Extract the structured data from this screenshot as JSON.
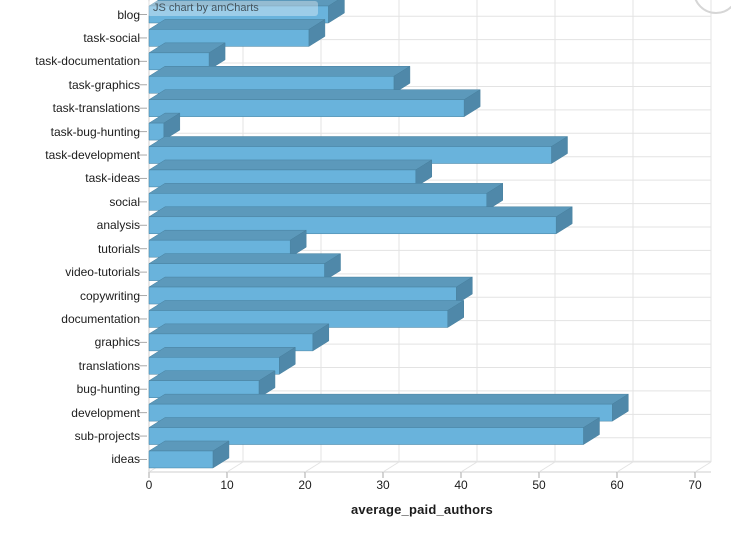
{
  "watermark": "JS chart by amCharts",
  "colors": {
    "bar_front": "#69B3DC",
    "bar_top": "#5C99BB",
    "bar_side": "#4F88A9",
    "bar_stroke": "#47809F",
    "grid": "#E3E3E3",
    "axis": "#CFCFCF",
    "tick": "#A9A9A9"
  },
  "chart_data": {
    "type": "bar",
    "orientation": "horizontal",
    "style": "3d",
    "title": "",
    "xlabel": "average_paid_authors",
    "ylabel": "",
    "xlim": [
      0,
      70
    ],
    "xticks": [
      0,
      10,
      20,
      30,
      40,
      50,
      60,
      70
    ],
    "grid": true,
    "legend": false,
    "categories": [
      "blog",
      "task-social",
      "task-documentation",
      "task-graphics",
      "task-translations",
      "task-bug-hunting",
      "task-development",
      "task-ideas",
      "social",
      "analysis",
      "tutorials",
      "video-tutorials",
      "copywriting",
      "documentation",
      "graphics",
      "translations",
      "bug-hunting",
      "development",
      "sub-projects",
      "ideas"
    ],
    "values": [
      23.0,
      20.5,
      7.7,
      31.4,
      40.4,
      1.9,
      51.6,
      34.2,
      43.3,
      52.2,
      18.1,
      22.5,
      39.4,
      38.3,
      21.0,
      16.7,
      14.1,
      59.4,
      55.7,
      8.2
    ]
  }
}
